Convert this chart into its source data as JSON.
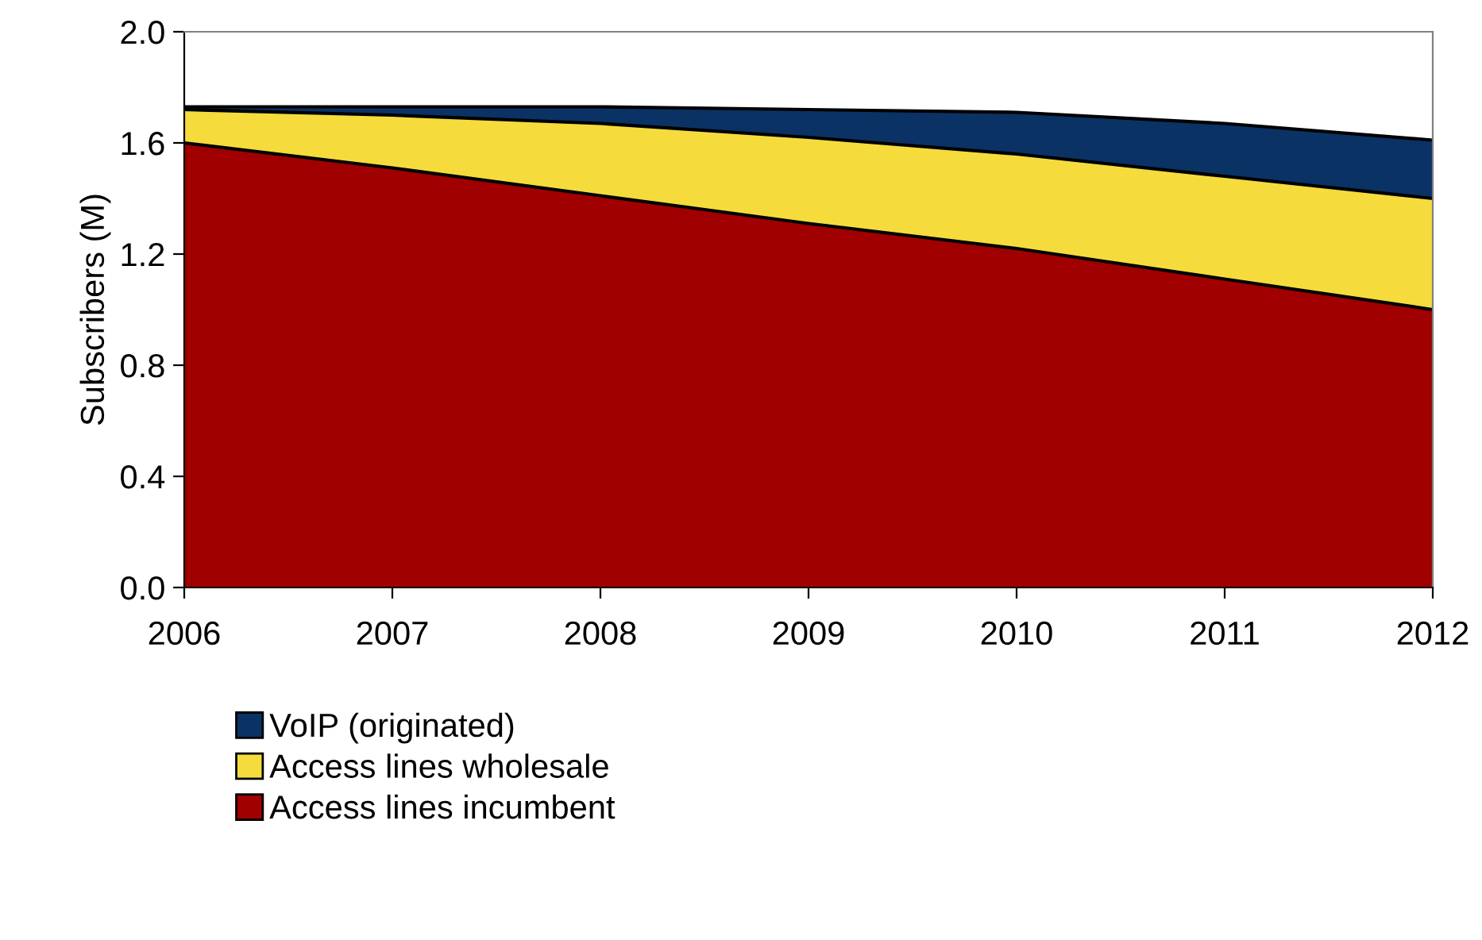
{
  "chart_data": {
    "type": "area",
    "stacked": true,
    "ylabel": "Subscribers (M)",
    "x": [
      2006,
      2007,
      2008,
      2009,
      2010,
      2011,
      2012
    ],
    "series": [
      {
        "name": "Access lines incumbent",
        "color": "#a00000",
        "values": [
          1.6,
          1.51,
          1.41,
          1.31,
          1.22,
          1.11,
          1.0
        ]
      },
      {
        "name": "Access lines wholesale",
        "color": "#f5dc3c",
        "values": [
          0.12,
          0.19,
          0.26,
          0.31,
          0.34,
          0.37,
          0.4
        ]
      },
      {
        "name": "VoIP (originated)",
        "color": "#0a3264",
        "values": [
          0.01,
          0.03,
          0.06,
          0.1,
          0.15,
          0.19,
          0.21
        ]
      }
    ],
    "xlim": [
      2006,
      2012
    ],
    "xticks": [
      2006,
      2007,
      2008,
      2009,
      2010,
      2011,
      2012
    ],
    "ylim": [
      0,
      2.0
    ],
    "yticks": [
      {
        "value": 0,
        "label": "0.0"
      },
      {
        "value": 0.4,
        "label": "0.4"
      },
      {
        "value": 0.8,
        "label": "0.8"
      },
      {
        "value": 1.2,
        "label": "1.2"
      },
      {
        "value": 1.6,
        "label": "1.6"
      },
      {
        "value": 2.0,
        "label": "2.0"
      }
    ],
    "grid": false,
    "legend": "bottom"
  }
}
